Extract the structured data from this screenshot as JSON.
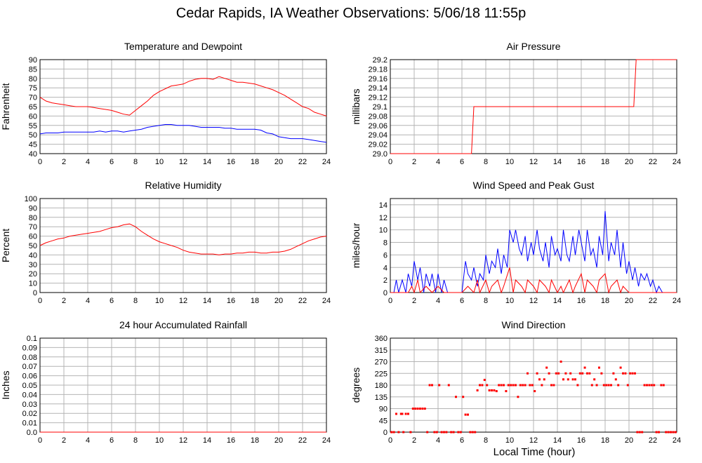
{
  "page": {
    "title": "Cedar Rapids, IA Weather Observations: 5/06/18 11:55p",
    "footer_xlabel": "Local Time (hour)"
  },
  "colors": {
    "red": "#ff0000",
    "blue": "#0000ff",
    "grid": "#b4b4b4",
    "axis": "#000000"
  },
  "chart_data": [
    {
      "id": "temp",
      "type": "line",
      "title": "Temperature and Dewpoint",
      "ylabel": "Fahrenheit",
      "xlim": [
        0,
        24
      ],
      "ylim": [
        40,
        90
      ],
      "xticks": [
        0,
        2,
        4,
        6,
        8,
        10,
        12,
        14,
        16,
        18,
        20,
        22,
        24
      ],
      "yticks": [
        40,
        45,
        50,
        55,
        60,
        65,
        70,
        75,
        80,
        85,
        90
      ],
      "series": [
        {
          "color": "#ff0000",
          "x": [
            0,
            0.5,
            1,
            1.5,
            2,
            2.5,
            3,
            3.5,
            4,
            4.5,
            5,
            5.5,
            6,
            6.5,
            7,
            7.5,
            8,
            8.5,
            9,
            9.5,
            10,
            10.5,
            11,
            11.5,
            12,
            12.5,
            13,
            13.5,
            14,
            14.5,
            15,
            15.5,
            16,
            16.5,
            17,
            17.5,
            18,
            18.5,
            19,
            19.5,
            20,
            20.5,
            21,
            21.5,
            22,
            22.5,
            23,
            23.5,
            24
          ],
          "values": [
            70,
            68,
            67,
            66.5,
            66,
            65.5,
            65,
            65,
            65,
            64.5,
            64,
            63.5,
            63,
            62,
            61,
            60.5,
            63,
            65.5,
            68,
            71,
            73,
            74.5,
            76,
            76.5,
            77,
            78.5,
            79.5,
            80,
            80,
            79.5,
            81,
            80,
            79,
            78,
            78,
            77.5,
            77,
            76,
            75,
            74,
            72.5,
            71,
            69,
            67,
            65,
            64,
            62,
            61,
            60
          ]
        },
        {
          "color": "#0000ff",
          "x": [
            0,
            0.5,
            1,
            1.5,
            2,
            2.5,
            3,
            3.5,
            4,
            4.5,
            5,
            5.5,
            6,
            6.5,
            7,
            7.5,
            8,
            8.5,
            9,
            9.5,
            10,
            10.5,
            11,
            11.5,
            12,
            12.5,
            13,
            13.5,
            14,
            14.5,
            15,
            15.5,
            16,
            16.5,
            17,
            17.5,
            18,
            18.5,
            19,
            19.5,
            20,
            20.5,
            21,
            21.5,
            22,
            22.5,
            23,
            23.5,
            24
          ],
          "values": [
            50.5,
            51,
            51,
            51,
            51.5,
            51.5,
            51.5,
            51.5,
            51.5,
            51.5,
            52,
            51.5,
            52,
            52,
            51.5,
            52,
            52.5,
            53,
            54,
            54.5,
            55,
            55.5,
            55.5,
            55,
            55,
            55,
            54.5,
            54,
            54,
            54,
            54,
            53.5,
            53.5,
            53,
            53,
            53,
            53,
            52.5,
            51,
            50.5,
            49,
            48.5,
            48,
            48,
            48,
            47.5,
            47,
            46.5,
            46
          ]
        }
      ]
    },
    {
      "id": "pres",
      "type": "line",
      "title": "Air Pressure",
      "ylabel": "millibars",
      "xlim": [
        0,
        24
      ],
      "ylim": [
        29.0,
        29.2
      ],
      "xticks": [
        0,
        2,
        4,
        6,
        8,
        10,
        12,
        14,
        16,
        18,
        20,
        22,
        24
      ],
      "yticks": [
        29.0,
        29.02,
        29.04,
        29.06,
        29.08,
        29.1,
        29.12,
        29.14,
        29.16,
        29.18,
        29.2
      ],
      "ytick_labels": [
        "29.0",
        "29.02",
        "29.04",
        "29.06",
        "29.08",
        "29.1",
        "29.12",
        "29.14",
        "29.16",
        "29.18",
        "29.2"
      ],
      "series": [
        {
          "color": "#ff0000",
          "x": [
            0,
            6.8,
            7.0,
            20.4,
            20.6,
            24
          ],
          "values": [
            29.0,
            29.0,
            29.1,
            29.1,
            29.2,
            29.2
          ]
        }
      ]
    },
    {
      "id": "rh",
      "type": "line",
      "title": "Relative Humidity",
      "ylabel": "Percent",
      "xlim": [
        0,
        24
      ],
      "ylim": [
        0,
        100
      ],
      "xticks": [
        0,
        2,
        4,
        6,
        8,
        10,
        12,
        14,
        16,
        18,
        20,
        22,
        24
      ],
      "yticks": [
        0,
        10,
        20,
        30,
        40,
        50,
        60,
        70,
        80,
        90,
        100
      ],
      "series": [
        {
          "color": "#ff0000",
          "x": [
            0,
            0.5,
            1,
            1.5,
            2,
            2.5,
            3,
            3.5,
            4,
            4.5,
            5,
            5.5,
            6,
            6.5,
            7,
            7.5,
            8,
            8.5,
            9,
            9.5,
            10,
            10.5,
            11,
            11.5,
            12,
            12.5,
            13,
            13.5,
            14,
            14.5,
            15,
            15.5,
            16,
            16.5,
            17,
            17.5,
            18,
            18.5,
            19,
            19.5,
            20,
            20.5,
            21,
            21.5,
            22,
            22.5,
            23,
            23.5,
            24
          ],
          "values": [
            50,
            53,
            55,
            57,
            58,
            60,
            61,
            62,
            63,
            64,
            65,
            67,
            69,
            70,
            72,
            73,
            70,
            65,
            61,
            57,
            54,
            52,
            50,
            48,
            45,
            43,
            42,
            41,
            41,
            41,
            40,
            41,
            41,
            42,
            42,
            43,
            43,
            42,
            42,
            43,
            43,
            44,
            46,
            49,
            52,
            55,
            57,
            59,
            60
          ]
        }
      ]
    },
    {
      "id": "wind",
      "type": "line",
      "title": "Wind Speed and Peak Gust",
      "ylabel": "miles/hour",
      "xlim": [
        0,
        24
      ],
      "ylim": [
        0,
        15
      ],
      "xticks": [
        0,
        2,
        4,
        6,
        8,
        10,
        12,
        14,
        16,
        18,
        20,
        22,
        24
      ],
      "yticks": [
        0,
        2,
        4,
        6,
        8,
        10,
        12,
        14
      ],
      "series": [
        {
          "color": "#0000ff",
          "x": [
            0,
            0.3,
            0.5,
            0.7,
            1,
            1.3,
            1.5,
            1.8,
            2,
            2.3,
            2.5,
            2.8,
            3,
            3.3,
            3.5,
            3.8,
            4,
            4.3,
            4.5,
            4.8,
            5,
            5.5,
            6,
            6.3,
            6.5,
            6.8,
            7,
            7.3,
            7.5,
            7.8,
            8,
            8.3,
            8.5,
            8.8,
            9,
            9.3,
            9.5,
            9.8,
            10,
            10.3,
            10.5,
            10.8,
            11,
            11.3,
            11.5,
            11.8,
            12,
            12.3,
            12.5,
            12.8,
            13,
            13.3,
            13.5,
            13.8,
            14,
            14.3,
            14.5,
            14.8,
            15,
            15.3,
            15.5,
            15.8,
            16,
            16.3,
            16.5,
            16.8,
            17,
            17.3,
            17.5,
            17.8,
            18,
            18.3,
            18.5,
            18.8,
            19,
            19.3,
            19.5,
            19.8,
            20,
            20.3,
            20.5,
            20.8,
            21,
            21.3,
            21.5,
            21.8,
            22,
            22.3,
            22.5,
            22.8,
            23,
            23.5,
            24
          ],
          "values": [
            0,
            0,
            2,
            0,
            2,
            0,
            3,
            1,
            5,
            2,
            4,
            0,
            3,
            1,
            3,
            0,
            3,
            0,
            2,
            0,
            0,
            0,
            0,
            5,
            3,
            2,
            4,
            1,
            3,
            2,
            6,
            3,
            5,
            4,
            7,
            3,
            6,
            4,
            10,
            8,
            10,
            7,
            6,
            9,
            5,
            8,
            6,
            10,
            7,
            5,
            8,
            4,
            9,
            6,
            7,
            5,
            10,
            6,
            5,
            9,
            6,
            10,
            8,
            5,
            10,
            6,
            7,
            4,
            9,
            6,
            13,
            5,
            8,
            6,
            10,
            4,
            8,
            3,
            5,
            2,
            4,
            1,
            3,
            2,
            3,
            1,
            2,
            0,
            1,
            0,
            0,
            0,
            0
          ]
        },
        {
          "color": "#ff0000",
          "x": [
            0,
            0.5,
            1,
            1.5,
            1.8,
            2,
            2.3,
            2.5,
            3,
            3.5,
            4,
            4.5,
            5,
            5.5,
            6,
            6.5,
            7,
            7.3,
            7.5,
            8,
            8.3,
            8.5,
            9,
            9.3,
            9.5,
            10,
            10.3,
            10.5,
            11,
            11.3,
            11.5,
            12,
            12.3,
            12.5,
            13,
            13.3,
            13.5,
            14,
            14.3,
            14.5,
            15,
            15.3,
            15.5,
            16,
            16.3,
            16.5,
            17,
            17.3,
            17.5,
            18,
            18.3,
            18.5,
            19,
            19.3,
            19.5,
            20,
            20.5,
            21,
            21.5,
            22,
            22.5,
            23,
            24
          ],
          "values": [
            0,
            0,
            0,
            0,
            1,
            0,
            2,
            0,
            1,
            0,
            1,
            0,
            0,
            0,
            0,
            1,
            0,
            2,
            0,
            2,
            0,
            1,
            2,
            0,
            1,
            4,
            0,
            2,
            1,
            0,
            2,
            1,
            0,
            2,
            1,
            0,
            2,
            0,
            1,
            0,
            2,
            0,
            1,
            3,
            0,
            2,
            1,
            0,
            2,
            3,
            0,
            1,
            2,
            0,
            1,
            0,
            0,
            0,
            0,
            0,
            0,
            0,
            0
          ]
        }
      ]
    },
    {
      "id": "rain",
      "type": "line",
      "title": "24 hour Accumulated Rainfall",
      "ylabel": "Inches",
      "xlim": [
        0,
        24
      ],
      "ylim": [
        0,
        0.1
      ],
      "xticks": [
        0,
        2,
        4,
        6,
        8,
        10,
        12,
        14,
        16,
        18,
        20,
        22,
        24
      ],
      "yticks": [
        0,
        0.01,
        0.02,
        0.03,
        0.04,
        0.05,
        0.06,
        0.07,
        0.08,
        0.09,
        0.1
      ],
      "ytick_labels": [
        "0.0",
        "0.01",
        "0.02",
        "0.03",
        "0.04",
        "0.05",
        "0.06",
        "0.07",
        "0.08",
        "0.09",
        "0.1"
      ],
      "series": [
        {
          "color": "#ff0000",
          "x": [
            0,
            24
          ],
          "values": [
            0,
            0
          ]
        }
      ]
    },
    {
      "id": "dir",
      "type": "scatter",
      "title": "Wind Direction",
      "ylabel": "degrees",
      "xlim": [
        0,
        24
      ],
      "ylim": [
        0,
        360
      ],
      "xticks": [
        0,
        2,
        4,
        6,
        8,
        10,
        12,
        14,
        16,
        18,
        20,
        22,
        24
      ],
      "yticks": [
        0,
        45,
        90,
        135,
        180,
        225,
        270,
        315,
        360
      ],
      "series": [
        {
          "color": "#ff0000",
          "x": [
            0.1,
            0.3,
            0.5,
            0.7,
            0.9,
            1.0,
            1.1,
            1.3,
            1.5,
            1.7,
            1.9,
            2.1,
            2.3,
            2.5,
            2.7,
            2.9,
            3.1,
            3.3,
            3.5,
            3.7,
            3.9,
            4.1,
            4.3,
            4.5,
            4.7,
            4.9,
            5.1,
            5.3,
            5.5,
            5.7,
            5.9,
            6.1,
            6.3,
            6.5,
            6.7,
            6.9,
            7.1,
            7.3,
            7.5,
            7.7,
            7.9,
            8.1,
            8.3,
            8.5,
            8.7,
            8.9,
            9.1,
            9.3,
            9.5,
            9.7,
            9.9,
            10.1,
            10.3,
            10.5,
            10.7,
            10.9,
            11.1,
            11.3,
            11.5,
            11.7,
            11.9,
            12.1,
            12.3,
            12.5,
            12.7,
            12.9,
            13.1,
            13.3,
            13.5,
            13.7,
            13.9,
            14.1,
            14.3,
            14.5,
            14.7,
            14.9,
            15.1,
            15.3,
            15.5,
            15.7,
            15.9,
            16.1,
            16.3,
            16.5,
            16.7,
            16.9,
            17.1,
            17.3,
            17.5,
            17.7,
            17.9,
            18.1,
            18.3,
            18.5,
            18.7,
            18.9,
            19.1,
            19.3,
            19.5,
            19.7,
            19.9,
            20.1,
            20.3,
            20.5,
            20.7,
            20.9,
            21.1,
            21.3,
            21.5,
            21.7,
            21.9,
            22.1,
            22.3,
            22.5,
            22.7,
            22.9,
            23.1,
            23.3,
            23.5,
            23.7,
            23.9
          ],
          "values": [
            0,
            0,
            70,
            0,
            70,
            70,
            0,
            70,
            70,
            0,
            90,
            90,
            90,
            90,
            90,
            90,
            0,
            180,
            180,
            0,
            0,
            180,
            0,
            0,
            0,
            180,
            0,
            0,
            135,
            0,
            0,
            135,
            67,
            67,
            0,
            0,
            0,
            160,
            180,
            180,
            200,
            180,
            160,
            160,
            160,
            157,
            180,
            180,
            180,
            157,
            180,
            180,
            180,
            180,
            135,
            180,
            180,
            180,
            225,
            180,
            180,
            157,
            225,
            202,
            180,
            202,
            247,
            225,
            180,
            180,
            225,
            225,
            270,
            202,
            225,
            202,
            225,
            202,
            202,
            180,
            225,
            225,
            247,
            225,
            225,
            180,
            202,
            180,
            247,
            225,
            180,
            180,
            180,
            180,
            225,
            202,
            180,
            247,
            225,
            225,
            180,
            225,
            225,
            225,
            0,
            0,
            0,
            180,
            180,
            180,
            180,
            180,
            0,
            0,
            180,
            180,
            0,
            0,
            0,
            0,
            0
          ]
        }
      ]
    }
  ]
}
